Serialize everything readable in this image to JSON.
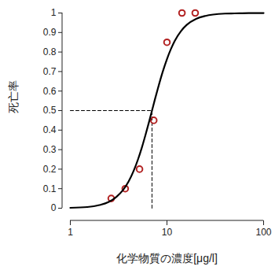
{
  "chart_data": {
    "type": "scatter",
    "x_label": "化学物質の濃度[μg/l]",
    "y_label": "死亡率",
    "log": "x",
    "grid": false,
    "xlim": [
      1,
      100
    ],
    "xticks": [
      1,
      10,
      100
    ],
    "ylim": [
      0,
      1
    ],
    "yticks": [
      0,
      0.1,
      0.2,
      0.3,
      0.4,
      0.5,
      0.6,
      0.7,
      0.8,
      0.9,
      1
    ],
    "series": [
      {
        "type": "scatter",
        "marker": "circle",
        "color": "#b22222",
        "x": [
          2.65,
          3.7,
          5.2,
          7.3,
          10,
          14.3,
          19.6
        ],
        "values": [
          0.05,
          0.1,
          0.2,
          0.45,
          0.85,
          1,
          1
        ]
      },
      {
        "type": "line",
        "line_style": "solid",
        "color": "#000000",
        "x": [
          1,
          1.5,
          2,
          2.5,
          3,
          3.5,
          4,
          4.5,
          5,
          5.5,
          6,
          6.5,
          7,
          7.5,
          8,
          9,
          10,
          11,
          12,
          14,
          16,
          20,
          25,
          30,
          40,
          50,
          70,
          100
        ],
        "values": [
          0.002,
          0.006,
          0.016,
          0.032,
          0.058,
          0.092,
          0.136,
          0.189,
          0.248,
          0.311,
          0.376,
          0.439,
          0.5,
          0.557,
          0.608,
          0.696,
          0.764,
          0.816,
          0.856,
          0.908,
          0.939,
          0.97,
          0.985,
          0.992,
          0.997,
          0.998,
          0.9995,
          0.9998
        ]
      }
    ],
    "reference_lines": {
      "x": 7,
      "y": 0.5,
      "line_style": "dashed",
      "color": "#000000"
    }
  }
}
